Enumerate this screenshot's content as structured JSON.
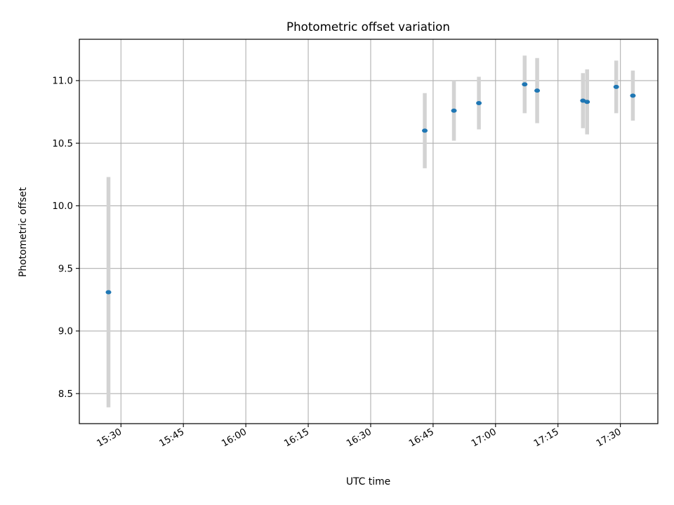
{
  "chart_data": {
    "type": "scatter",
    "title": "Photometric offset variation",
    "xlabel": "UTC time",
    "ylabel": "Photometric offset",
    "x_unit": "UTC time (HH:MM)",
    "xlim": [
      "15:20",
      "17:39"
    ],
    "ylim": [
      8.26,
      11.33
    ],
    "x_ticks": [
      "15:30",
      "15:45",
      "16:00",
      "16:15",
      "16:30",
      "16:45",
      "17:00",
      "17:15",
      "17:30"
    ],
    "y_ticks": [
      8.5,
      9.0,
      9.5,
      10.0,
      10.5,
      11.0
    ],
    "y_tick_labels": [
      "8.5",
      "9.0",
      "9.5",
      "10.0",
      "10.5",
      "11.0"
    ],
    "grid": true,
    "legend": "none",
    "series": [
      {
        "x": [
          "15:27",
          "16:43",
          "16:50",
          "16:56",
          "17:07",
          "17:10",
          "17:21",
          "17:22",
          "17:29",
          "17:33"
        ],
        "y": [
          9.31,
          10.6,
          10.76,
          10.82,
          10.97,
          10.92,
          10.84,
          10.83,
          10.95,
          10.88
        ],
        "y_err": [
          0.92,
          0.3,
          0.24,
          0.21,
          0.23,
          0.26,
          0.22,
          0.26,
          0.21,
          0.2
        ]
      }
    ],
    "colors": {
      "marker": "#1f77b4",
      "errorbar": "#d3d3d3",
      "grid": "#b0b0b0",
      "axes": "#000000"
    }
  }
}
